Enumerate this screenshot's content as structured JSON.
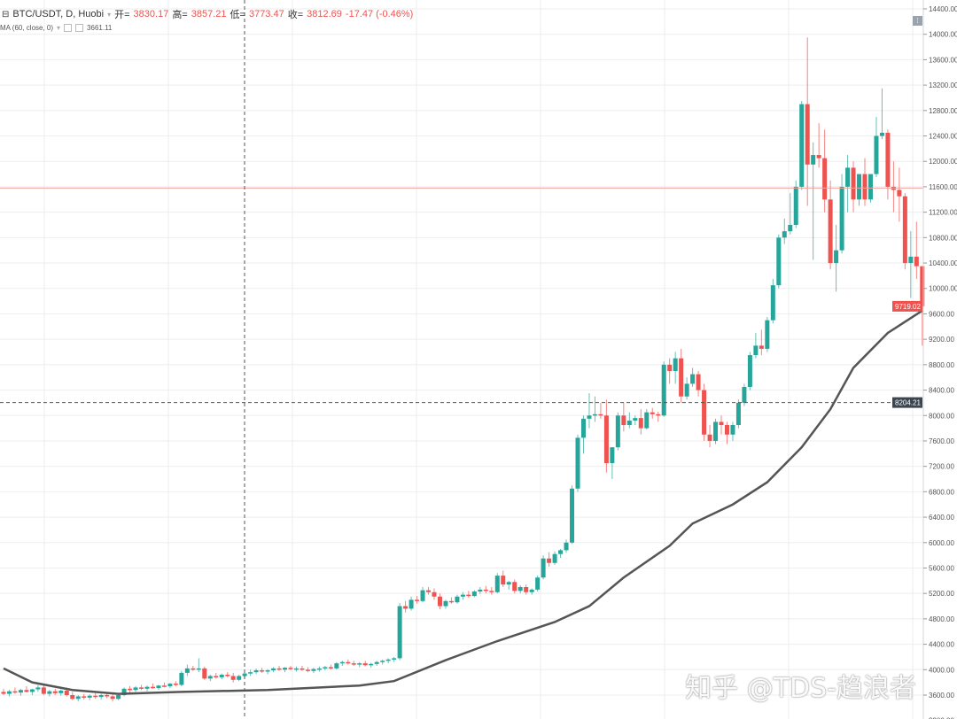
{
  "header": {
    "symbol": "BTC/USDT, D, Huobi",
    "open_label": "开=",
    "open": "3830.17",
    "high_label": "高=",
    "high": "3857.21",
    "low_label": "低=",
    "low": "3773.47",
    "close_label": "收=",
    "close": "3812.69",
    "change": "-17.47 (-0.46%)",
    "indicator": "MA (60, close, 0)",
    "indicator_value": "3661.11"
  },
  "watermark": "知乎 @TDS-趋浪者",
  "colors": {
    "up": "#26a69a",
    "down": "#ef5350",
    "ma": "#555555",
    "grid": "#eeeeee"
  },
  "chart_data": {
    "type": "candlestick",
    "y_axis": {
      "min": 3600,
      "max": 14400,
      "step": 400,
      "side": "right"
    },
    "price_labels": [
      {
        "value": "9719.02",
        "price": 9719.02,
        "color": "#ef5350"
      },
      {
        "value": "8204.21",
        "price": 8204.21,
        "color": "#3c4650"
      }
    ],
    "horizontal_line_price": 11580,
    "crosshair_price": 8204.21,
    "candles": [
      [
        3650,
        3700,
        3600,
        3620
      ],
      [
        3620,
        3680,
        3580,
        3660
      ],
      [
        3660,
        3720,
        3620,
        3640
      ],
      [
        3640,
        3700,
        3590,
        3680
      ],
      [
        3680,
        3740,
        3640,
        3650
      ],
      [
        3650,
        3700,
        3600,
        3690
      ],
      [
        3690,
        3760,
        3650,
        3720
      ],
      [
        3720,
        3760,
        3600,
        3620
      ],
      [
        3620,
        3680,
        3580,
        3660
      ],
      [
        3660,
        3700,
        3600,
        3630
      ],
      [
        3630,
        3690,
        3590,
        3670
      ],
      [
        3670,
        3720,
        3580,
        3600
      ],
      [
        3600,
        3650,
        3520,
        3540
      ],
      [
        3540,
        3600,
        3500,
        3580
      ],
      [
        3580,
        3620,
        3530,
        3560
      ],
      [
        3560,
        3610,
        3520,
        3590
      ],
      [
        3590,
        3630,
        3540,
        3570
      ],
      [
        3570,
        3620,
        3530,
        3600
      ],
      [
        3600,
        3640,
        3550,
        3580
      ],
      [
        3580,
        3620,
        3500,
        3540
      ],
      [
        3540,
        3620,
        3520,
        3600
      ],
      [
        3600,
        3720,
        3580,
        3700
      ],
      [
        3700,
        3740,
        3640,
        3680
      ],
      [
        3680,
        3740,
        3650,
        3720
      ],
      [
        3720,
        3760,
        3680,
        3700
      ],
      [
        3700,
        3750,
        3660,
        3730
      ],
      [
        3730,
        3780,
        3700,
        3710
      ],
      [
        3710,
        3760,
        3680,
        3750
      ],
      [
        3750,
        3800,
        3720,
        3740
      ],
      [
        3740,
        3790,
        3710,
        3780
      ],
      [
        3780,
        3820,
        3740,
        3760
      ],
      [
        3760,
        3980,
        3740,
        3950
      ],
      [
        3950,
        4080,
        3900,
        4020
      ],
      [
        4020,
        4060,
        3980,
        4000
      ],
      [
        4000,
        4180,
        3960,
        4020
      ],
      [
        4020,
        4050,
        3840,
        3860
      ],
      [
        3860,
        3920,
        3820,
        3900
      ],
      [
        3900,
        3950,
        3860,
        3880
      ],
      [
        3880,
        3940,
        3850,
        3920
      ],
      [
        3920,
        3960,
        3880,
        3900
      ],
      [
        3900,
        3950,
        3800,
        3840
      ],
      [
        3840,
        3920,
        3820,
        3900
      ],
      [
        3900,
        3960,
        3870,
        3940
      ],
      [
        3940,
        4000,
        3900,
        3960
      ],
      [
        3960,
        4020,
        3930,
        3990
      ],
      [
        3990,
        4030,
        3950,
        3970
      ],
      [
        3970,
        4010,
        3930,
        3990
      ],
      [
        3990,
        4040,
        3960,
        4020
      ],
      [
        4020,
        4060,
        3980,
        4000
      ],
      [
        4000,
        4040,
        3960,
        4030
      ],
      [
        4030,
        4060,
        3990,
        4010
      ],
      [
        4010,
        4050,
        3970,
        4020
      ],
      [
        4020,
        4060,
        3980,
        4000
      ],
      [
        4000,
        4040,
        3960,
        3980
      ],
      [
        3980,
        4030,
        3950,
        4010
      ],
      [
        4010,
        4050,
        3970,
        4020
      ],
      [
        4020,
        4060,
        3990,
        4040
      ],
      [
        4040,
        4080,
        4000,
        4020
      ],
      [
        4020,
        4120,
        4000,
        4100
      ],
      [
        4100,
        4140,
        4060,
        4120
      ],
      [
        4120,
        4160,
        4080,
        4100
      ],
      [
        4100,
        4140,
        4060,
        4080
      ],
      [
        4080,
        4120,
        4040,
        4100
      ],
      [
        4100,
        4140,
        4050,
        4070
      ],
      [
        4070,
        4110,
        4030,
        4090
      ],
      [
        4090,
        4140,
        4060,
        4120
      ],
      [
        4120,
        4160,
        4080,
        4140
      ],
      [
        4140,
        4180,
        4100,
        4160
      ],
      [
        4160,
        4200,
        4120,
        4180
      ],
      [
        4180,
        5050,
        4150,
        5000
      ],
      [
        5000,
        5080,
        4900,
        4960
      ],
      [
        4960,
        5150,
        4930,
        5100
      ],
      [
        5100,
        5160,
        5040,
        5080
      ],
      [
        5080,
        5300,
        5060,
        5250
      ],
      [
        5250,
        5300,
        5180,
        5220
      ],
      [
        5220,
        5280,
        5100,
        5150
      ],
      [
        5150,
        5200,
        4950,
        5000
      ],
      [
        5000,
        5100,
        4960,
        5080
      ],
      [
        5080,
        5140,
        5040,
        5060
      ],
      [
        5060,
        5180,
        5040,
        5150
      ],
      [
        5150,
        5220,
        5100,
        5180
      ],
      [
        5180,
        5240,
        5130,
        5160
      ],
      [
        5160,
        5250,
        5140,
        5230
      ],
      [
        5230,
        5300,
        5190,
        5260
      ],
      [
        5260,
        5320,
        5200,
        5240
      ],
      [
        5240,
        5300,
        5180,
        5220
      ],
      [
        5220,
        5520,
        5200,
        5480
      ],
      [
        5480,
        5560,
        5300,
        5340
      ],
      [
        5340,
        5400,
        5260,
        5380
      ],
      [
        5380,
        5420,
        5200,
        5240
      ],
      [
        5240,
        5330,
        5200,
        5300
      ],
      [
        5300,
        5340,
        5180,
        5220
      ],
      [
        5220,
        5280,
        5180,
        5260
      ],
      [
        5260,
        5480,
        5230,
        5450
      ],
      [
        5450,
        5800,
        5420,
        5750
      ],
      [
        5750,
        5850,
        5620,
        5680
      ],
      [
        5680,
        5860,
        5650,
        5820
      ],
      [
        5820,
        5900,
        5760,
        5880
      ],
      [
        5880,
        6050,
        5840,
        6000
      ],
      [
        6000,
        6900,
        5980,
        6850
      ],
      [
        6850,
        7700,
        6800,
        7650
      ],
      [
        7650,
        8000,
        7400,
        7950
      ],
      [
        7950,
        8350,
        7800,
        8000
      ],
      [
        8000,
        8300,
        7900,
        8020
      ],
      [
        8020,
        8200,
        7950,
        8000
      ],
      [
        8000,
        8250,
        7100,
        7250
      ],
      [
        7250,
        7500,
        7000,
        7500
      ],
      [
        7500,
        8050,
        7450,
        8000
      ],
      [
        8000,
        8200,
        7750,
        7850
      ],
      [
        7850,
        8050,
        7800,
        7920
      ],
      [
        7920,
        8000,
        7850,
        7960
      ],
      [
        7960,
        8100,
        7700,
        7800
      ],
      [
        7800,
        8100,
        7780,
        8050
      ],
      [
        8050,
        8120,
        7950,
        8020
      ],
      [
        8020,
        8060,
        7900,
        8000
      ],
      [
        8000,
        8850,
        7980,
        8800
      ],
      [
        8800,
        8900,
        8500,
        8700
      ],
      [
        8700,
        9000,
        8500,
        8900
      ],
      [
        8900,
        9050,
        8200,
        8300
      ],
      [
        8300,
        8600,
        8250,
        8500
      ],
      [
        8500,
        8750,
        8450,
        8650
      ],
      [
        8650,
        8700,
        8300,
        8400
      ],
      [
        8400,
        8500,
        7600,
        7700
      ],
      [
        7700,
        7850,
        7500,
        7600
      ],
      [
        7600,
        7950,
        7550,
        7900
      ],
      [
        7900,
        8000,
        7700,
        7850
      ],
      [
        7850,
        7900,
        7550,
        7700
      ],
      [
        7700,
        7900,
        7600,
        7850
      ],
      [
        7850,
        8250,
        7800,
        8200
      ],
      [
        8200,
        8500,
        8150,
        8450
      ],
      [
        8450,
        9000,
        8400,
        8950
      ],
      [
        8950,
        9300,
        8900,
        9100
      ],
      [
        9100,
        9350,
        8950,
        9050
      ],
      [
        9050,
        9550,
        9000,
        9500
      ],
      [
        9500,
        10150,
        9450,
        10050
      ],
      [
        10050,
        10850,
        10000,
        10800
      ],
      [
        10800,
        11100,
        10700,
        10900
      ],
      [
        10900,
        11500,
        10850,
        11000
      ],
      [
        11000,
        11700,
        10950,
        11600
      ],
      [
        11600,
        12950,
        11550,
        12900
      ],
      [
        12900,
        13950,
        11300,
        11950
      ],
      [
        11950,
        12300,
        10450,
        12100
      ],
      [
        12100,
        12600,
        11900,
        12050
      ],
      [
        12050,
        12500,
        11200,
        11400
      ],
      [
        11400,
        11700,
        10300,
        10400
      ],
      [
        10400,
        11000,
        9950,
        10600
      ],
      [
        10600,
        11800,
        10550,
        11600
      ],
      [
        11600,
        12100,
        11200,
        11900
      ],
      [
        11900,
        12000,
        11200,
        11400
      ],
      [
        11400,
        11750,
        11300,
        11800
      ],
      [
        11800,
        12050,
        11300,
        11400
      ],
      [
        11400,
        11800,
        11350,
        11800
      ],
      [
        11800,
        12700,
        11750,
        12400
      ],
      [
        12400,
        13150,
        12350,
        12450
      ],
      [
        12450,
        12500,
        11400,
        11600
      ],
      [
        11600,
        12000,
        11200,
        11550
      ],
      [
        11550,
        11900,
        11050,
        11450
      ],
      [
        11450,
        11500,
        10300,
        10400
      ],
      [
        10400,
        10900,
        9850,
        10500
      ],
      [
        10500,
        11050,
        10150,
        10350
      ],
      [
        10350,
        10350,
        9100,
        9719.02
      ]
    ],
    "ma60": [
      [
        0,
        4020
      ],
      [
        5,
        3800
      ],
      [
        12,
        3680
      ],
      [
        20,
        3620
      ],
      [
        31,
        3650
      ],
      [
        46,
        3680
      ],
      [
        62,
        3750
      ],
      [
        68,
        3820
      ],
      [
        77,
        4150
      ],
      [
        86,
        4450
      ],
      [
        96,
        4750
      ],
      [
        102,
        5000
      ],
      [
        108,
        5450
      ],
      [
        116,
        5950
      ],
      [
        120,
        6300
      ],
      [
        127,
        6600
      ],
      [
        133,
        6950
      ],
      [
        139,
        7500
      ],
      [
        144,
        8100
      ],
      [
        148,
        8750
      ],
      [
        154,
        9300
      ],
      [
        160,
        9650
      ]
    ]
  }
}
